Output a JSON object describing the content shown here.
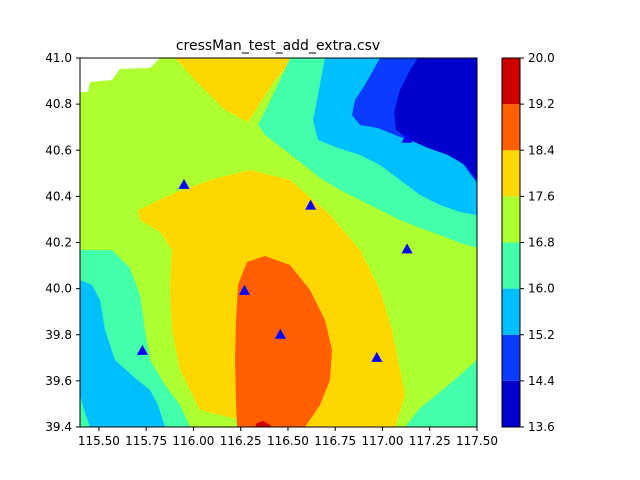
{
  "chart_data": {
    "type": "heatmap",
    "title": "cressMan_test_add_extra.csv",
    "xlim": [
      115.4,
      117.5
    ],
    "ylim": [
      39.4,
      41.0
    ],
    "x_ticks": [
      "115.50",
      "115.75",
      "116.00",
      "116.25",
      "116.50",
      "116.75",
      "117.00",
      "117.25",
      "117.50"
    ],
    "x_tick_values": [
      115.5,
      115.75,
      116.0,
      116.25,
      116.5,
      116.75,
      117.0,
      117.25,
      117.5
    ],
    "y_ticks": [
      "39.4",
      "39.6",
      "39.8",
      "40.0",
      "40.2",
      "40.4",
      "40.6",
      "40.8",
      "41.0"
    ],
    "y_tick_values": [
      39.4,
      39.6,
      39.8,
      40.0,
      40.2,
      40.4,
      40.6,
      40.8,
      41.0
    ],
    "colorbar": {
      "levels": [
        13.6,
        14.4,
        15.2,
        16.0,
        16.8,
        17.6,
        18.4,
        19.2,
        20.0
      ],
      "tick_labels": [
        "13.6",
        "14.4",
        "15.2",
        "16.0",
        "16.8",
        "17.6",
        "18.4",
        "19.2",
        "20.0"
      ],
      "colors": [
        "#0000cd",
        "#0a3cff",
        "#00bfff",
        "#44ffaa",
        "#adff2f",
        "#ffd700",
        "#ff5f00",
        "#cd0000"
      ]
    },
    "stations": [
      {
        "x": 115.95,
        "y": 40.45
      },
      {
        "x": 116.62,
        "y": 40.36
      },
      {
        "x": 117.13,
        "y": 40.65
      },
      {
        "x": 117.13,
        "y": 40.17
      },
      {
        "x": 116.27,
        "y": 39.99
      },
      {
        "x": 116.46,
        "y": 39.8
      },
      {
        "x": 116.97,
        "y": 39.7
      },
      {
        "x": 115.73,
        "y": 39.73
      }
    ],
    "station_color": "#0000ff",
    "grid": false
  }
}
